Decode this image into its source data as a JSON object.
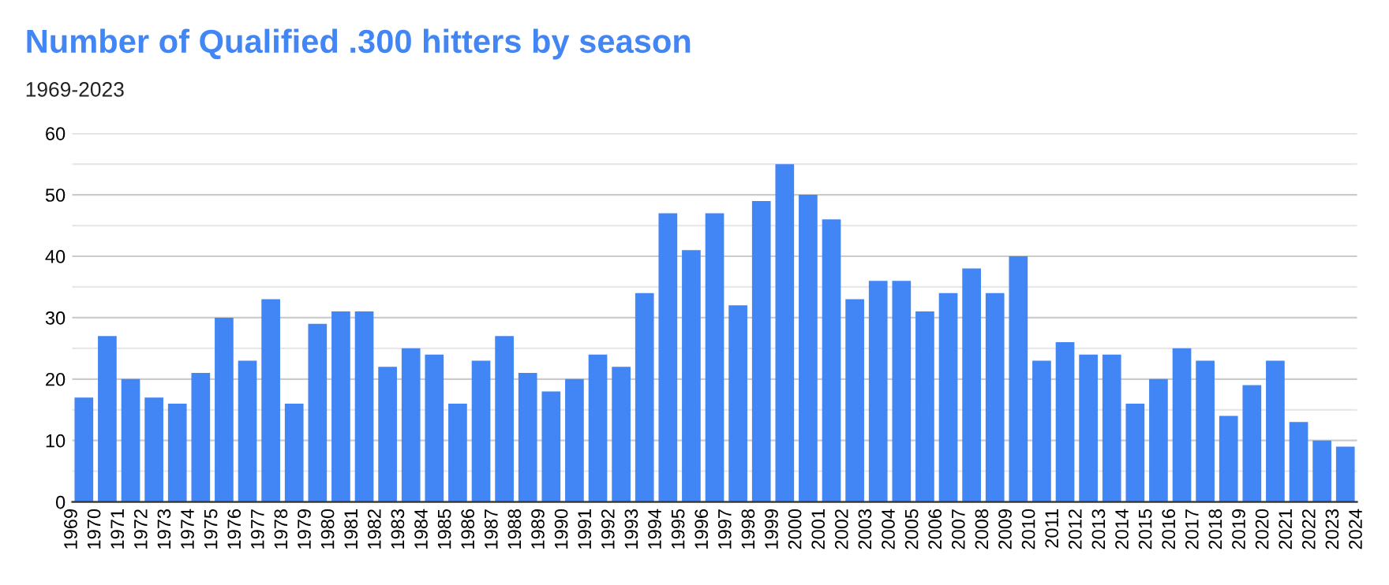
{
  "chart_data": {
    "type": "histogram",
    "title": "Number of Qualified .300 hitters by season",
    "subtitle": "1969-2023",
    "bins": [
      1969,
      1970,
      1971,
      1972,
      1973,
      1974,
      1975,
      1976,
      1977,
      1978,
      1979,
      1980,
      1981,
      1982,
      1983,
      1984,
      1985,
      1986,
      1987,
      1988,
      1989,
      1990,
      1991,
      1992,
      1993,
      1994,
      1995,
      1996,
      1997,
      1998,
      1999,
      2000,
      2001,
      2002,
      2003,
      2004,
      2005,
      2006,
      2007,
      2008,
      2009,
      2010,
      2011,
      2012,
      2013,
      2014,
      2015,
      2016,
      2017,
      2018,
      2019,
      2020,
      2021,
      2022,
      2023,
      2024
    ],
    "values": [
      17,
      27,
      20,
      17,
      16,
      21,
      30,
      23,
      33,
      16,
      29,
      31,
      31,
      22,
      25,
      24,
      16,
      23,
      27,
      21,
      18,
      20,
      24,
      22,
      34,
      47,
      41,
      47,
      32,
      49,
      55,
      50,
      46,
      33,
      36,
      36,
      31,
      34,
      38,
      34,
      40,
      23,
      26,
      24,
      24,
      16,
      20,
      25,
      23,
      14,
      19,
      23,
      13,
      10,
      9
    ],
    "color": "#4285f4",
    "xlim": [
      1969,
      2024
    ],
    "xticks": [
      1969,
      1970,
      1971,
      1972,
      1973,
      1974,
      1975,
      1976,
      1977,
      1978,
      1979,
      1980,
      1981,
      1982,
      1983,
      1984,
      1985,
      1986,
      1987,
      1988,
      1989,
      1990,
      1991,
      1992,
      1993,
      1994,
      1995,
      1996,
      1997,
      1998,
      1999,
      2000,
      2001,
      2002,
      2003,
      2004,
      2005,
      2006,
      2007,
      2008,
      2009,
      2010,
      2011,
      2012,
      2013,
      2014,
      2015,
      2016,
      2017,
      2018,
      2019,
      2020,
      2021,
      2022,
      2023,
      2024
    ],
    "ylim": [
      0,
      60
    ],
    "yticks": [
      0,
      {
        "value": 5,
        "label": null
      },
      10,
      {
        "value": 15,
        "label": null
      },
      20,
      {
        "value": 25,
        "label": null
      },
      30,
      {
        "value": 35,
        "label": null
      },
      40,
      {
        "value": 45,
        "label": null
      },
      50,
      {
        "value": 55,
        "label": null
      },
      60
    ],
    "grid": "y"
  }
}
